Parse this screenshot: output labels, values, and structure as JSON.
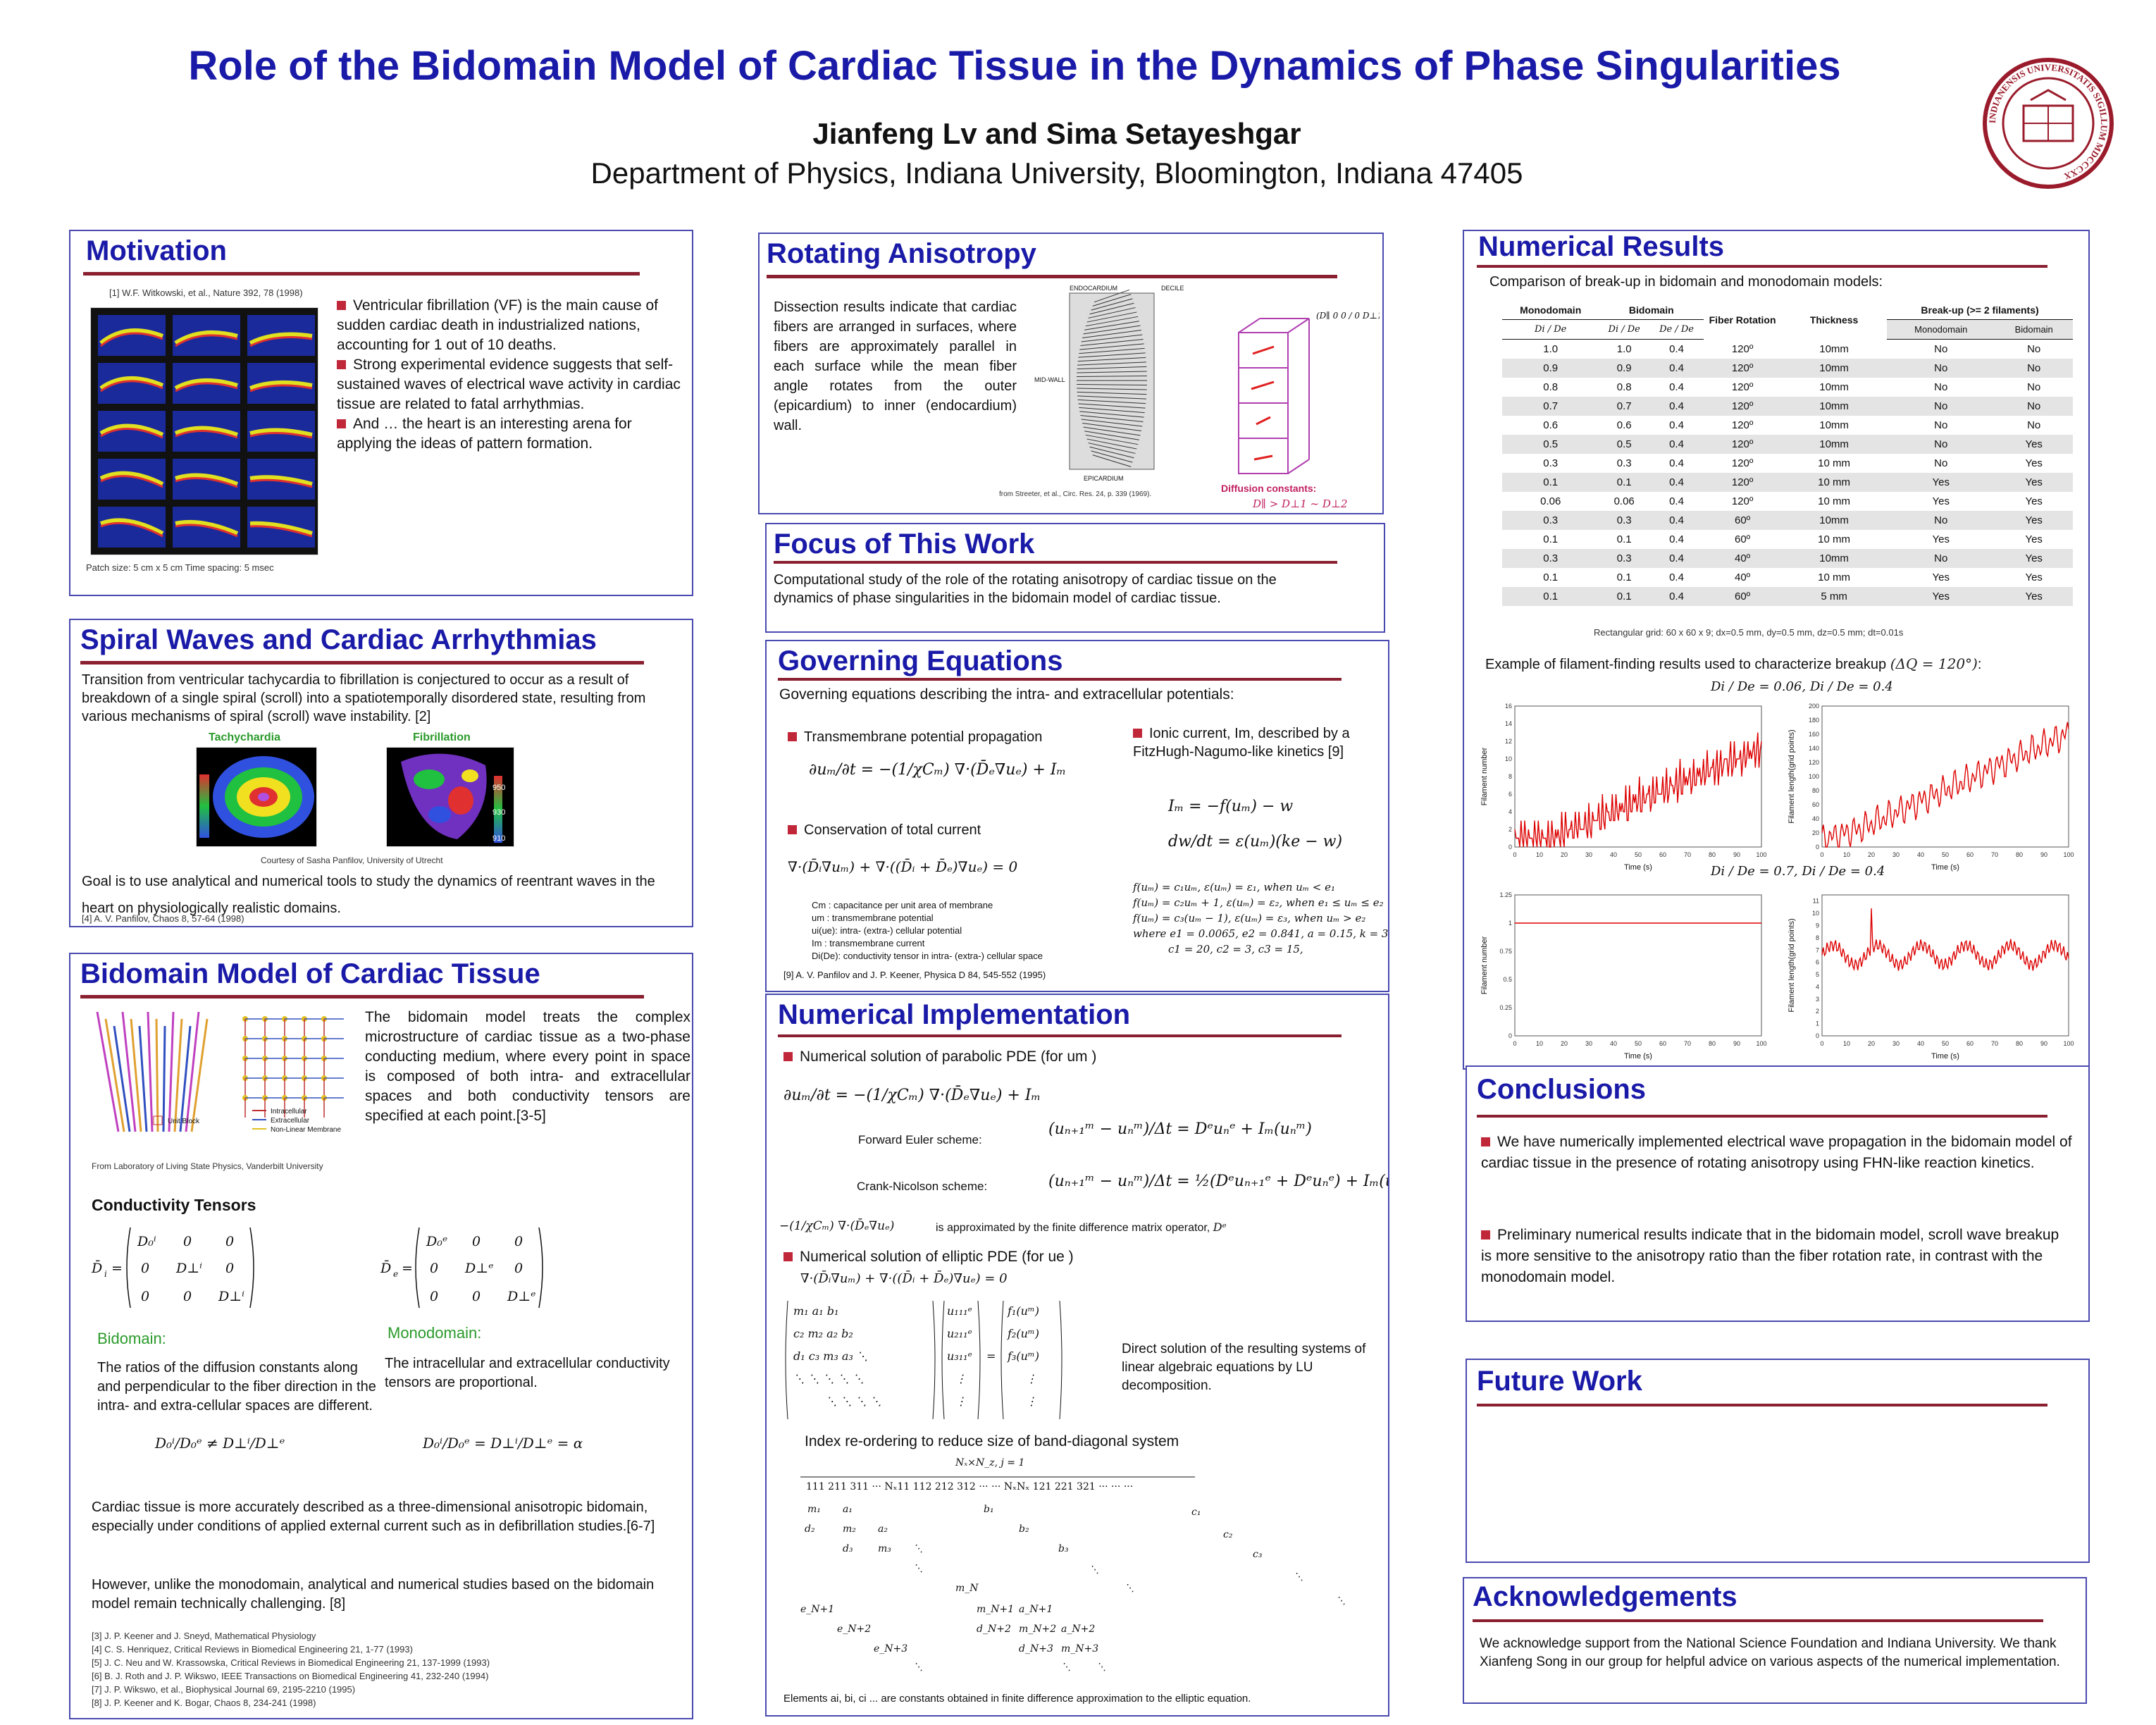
{
  "header": {
    "title": "Role of the Bidomain Model of Cardiac Tissue in the Dynamics of Phase Singularities",
    "authors": "Jianfeng Lv and Sima Setayeshgar",
    "affiliation": "Department of Physics, Indiana University, Bloomington, Indiana 47405",
    "seal_text": "INDIANENSIS UNIVERSITATIS SIGILLUM MDCCCXX"
  },
  "colors": {
    "title_blue": "#1a1aa8",
    "underline_red": "#8a1f2f",
    "bullet_red": "#c0283a",
    "plot_red": "#dd0000"
  },
  "motivation": {
    "title": "Motivation",
    "citation": "[1] W.F. Witkowski, et al., Nature 392, 78 (1998)",
    "bullets": [
      "Ventricular fibrillation (VF) is the main cause of sudden cardiac death in industrialized nations, accounting for 1 out of 10 deaths.",
      "Strong experimental evidence suggests that self-sustained waves of electrical wave activity in cardiac tissue are related to fatal arrhythmias.",
      "And … the heart is an interesting arena for applying the ideas of pattern formation."
    ],
    "caption": "Patch size: 5 cm x 5 cm Time spacing: 5 msec"
  },
  "spiral": {
    "title": "Spiral Waves and Cardiac Arrhythmias",
    "text": "Transition from ventricular tachycardia to fibrillation is conjectured to occur as a result of breakdown of a single spiral (scroll) into a spatiotemporally disordered state, resulting from various mechanisms of spiral (scroll) wave instability. [2]",
    "label_tachy": "Tachychardia",
    "label_fib": "Fibrillation",
    "credit": "Courtesy of Sasha Panfilov, University of Utrecht",
    "goal": "Goal is to use analytical and numerical tools to study the dynamics of reentrant waves in the heart on physiologically realistic domains.",
    "ref": "[4] A. V. Panfilov, Chaos 8, 57-64 (1998)",
    "scale_labels": [
      "950",
      "930",
      "910"
    ]
  },
  "bidomain": {
    "title": "Bidomain Model of Cardiac Tissue",
    "text": "The bidomain model treats the complex microstructure of cardiac tissue as a two-phase conducting medium, where every point in space is composed of both intra- and extracellular spaces and both conductivity tensors are specified at each point.[3-5]",
    "fig_credit": "From Laboratory of Living State Physics, Vanderbilt University",
    "legend": [
      "Unit Block",
      "Intracellular",
      "Extracellular",
      "Non-Linear Membrane"
    ],
    "cond_title": "Conductivity  Tensors",
    "bid_head": "Bidomain:",
    "bid_text": "The ratios of the diffusion constants along and perpendicular to the fiber direction in the intra- and extra-cellular spaces are different.",
    "mono_head": "Monodomain:",
    "mono_text": "The intracellular and extracellular conductivity tensors are proportional.",
    "para1": "Cardiac tissue is more accurately described as a three-dimensional anisotropic bidomain, especially under conditions of applied external current such as in defibrillation studies.[6-7]",
    "para2": "However, unlike the monodomain, analytical and numerical studies based on the bidomain model remain technically challenging. [8]",
    "refs": [
      "[3] J. P. Keener and J. Sneyd, Mathematical Physiology",
      "[4] C. S. Henriquez, Critical Reviews in Biomedical Engineering 21, 1-77 (1993)",
      "[5] J. C. Neu and W. Krassowska, Critical Reviews in Biomedical Engineering 21, 137-1999 (1993)",
      "[6] B. J. Roth and J. P. Wikswo, IEEE Transactions on Biomedical Engineering 41, 232-240 (1994)",
      "[7] J. P. Wikswo, et al., Biophysical Journal 69, 2195-2210 (1995)",
      "[8] J. P. Keener and K. Bogar, Chaos 8, 234-241 (1998)"
    ]
  },
  "rotating": {
    "title": "Rotating Anisotropy",
    "text": "Dissection results indicate that cardiac fibers are arranged in surfaces, where fibers are approximately parallel in each surface while the mean fiber angle rotates from the outer (epicardium) to inner (endocardium) wall.",
    "fig_labels": [
      "ENDOCARDIUM",
      "MID-WALL",
      "EPICARDIUM",
      "DECILE"
    ],
    "fig_source": "from Streeter, et al., Circ. Res. 24, p. 339 (1969).",
    "diffusion_label": "Diffusion constants:"
  },
  "focus": {
    "title": "Focus of This Work",
    "text": "Computational study of the role of the rotating anisotropy of cardiac tissue on the dynamics of phase singularities in the bidomain model of cardiac tissue."
  },
  "governing": {
    "title": "Governing Equations",
    "intro": "Governing equations describing the intra- and extracellular potentials:",
    "b1": "Transmembrane potential propagation",
    "b2": "Conservation of total current",
    "b3": "Ionic current, Im, described by a FitzHugh-Nagumo-like kinetics [9]",
    "defs": [
      "Cm : capacitance per unit area of membrane",
      "um : transmembrane potential",
      "ui(ue): intra- (extra-) cellular potential",
      "Im : transmembrane current",
      "Di(De): conductivity tensor in intra- (extra-) cellular space"
    ],
    "ref": "[9] A. V. Panfilov and J. P. Keener, Physica D 84, 545-552 (1995)",
    "params": "where e1 = 0.0065, e2 = 0.841, a = 0.15, k = 3",
    "params2": "c1 = 20, c2 = 3, c3 = 15,"
  },
  "numimpl": {
    "title": "Numerical Implementation",
    "b1": "Numerical solution of parabolic PDE (for um )",
    "fe": "Forward Euler scheme:",
    "cn": "Crank-Nicolson scheme:",
    "approx": "is approximated by the finite difference matrix operator,",
    "b2": "Numerical solution of elliptic PDE (for ue )",
    "direct": "Direct  solution of  the resulting systems of linear algebraic equations  by  LU decomposition.",
    "reorder": "Index re-ordering to reduce size of band-diagonal system",
    "note": "Elements ai, bi, ci ... are constants obtained in finite difference approximation to the elliptic equation."
  },
  "results": {
    "title": "Numerical Results",
    "intro": "Comparison of break-up in bidomain and monodomain models:",
    "headers": [
      "Monodomain",
      "Bidomain",
      "Fiber Rotation",
      "Thickness",
      "Break-up (>= 2 filaments)",
      "Monodomain",
      "Bidomain"
    ],
    "subheaders": [
      "Di / De",
      "Di / De",
      "De / De"
    ],
    "rows": [
      [
        "1.0",
        "1.0",
        "0.4",
        "120º",
        "10mm",
        "No",
        "No"
      ],
      [
        "0.9",
        "0.9",
        "0.4",
        "120º",
        "10mm",
        "No",
        "No"
      ],
      [
        "0.8",
        "0.8",
        "0.4",
        "120º",
        "10mm",
        "No",
        "No"
      ],
      [
        "0.7",
        "0.7",
        "0.4",
        "120º",
        "10mm",
        "No",
        "No"
      ],
      [
        "0.6",
        "0.6",
        "0.4",
        "120º",
        "10mm",
        "No",
        "No"
      ],
      [
        "0.5",
        "0.5",
        "0.4",
        "120º",
        "10mm",
        "No",
        "Yes"
      ],
      [
        "0.3",
        "0.3",
        "0.4",
        "120º",
        "10 mm",
        "No",
        "Yes"
      ],
      [
        "0.1",
        "0.1",
        "0.4",
        "120º",
        "10 mm",
        "Yes",
        "Yes"
      ],
      [
        "0.06",
        "0.06",
        "0.4",
        "120º",
        "10 mm",
        "Yes",
        "Yes"
      ],
      [
        "0.3",
        "0.3",
        "0.4",
        "60º",
        "10mm",
        "No",
        "Yes"
      ],
      [
        "0.1",
        "0.1",
        "0.4",
        "60º",
        "10 mm",
        "Yes",
        "Yes"
      ],
      [
        "0.3",
        "0.3",
        "0.4",
        "40º",
        "10mm",
        "No",
        "Yes"
      ],
      [
        "0.1",
        "0.1",
        "0.4",
        "40º",
        "10 mm",
        "Yes",
        "Yes"
      ],
      [
        "0.1",
        "0.1",
        "0.4",
        "60º",
        "5 mm",
        "Yes",
        "Yes"
      ]
    ],
    "grid": "Rectangular grid:  60 x 60 x 9;  dx=0.5 mm, dy=0.5 mm, dz=0.5 mm; dt=0.01s",
    "example": "Example of filament-finding results used to characterize breakup",
    "case1": "Di / De = 0.06,  Di / De = 0.4",
    "case2": "Di / De = 0.7,  Di / De = 0.4",
    "xlabel": "Time (s)",
    "ylabel_num": "Filament number",
    "ylabel_len": "Filament length(grid points)"
  },
  "conclusions": {
    "title": "Conclusions",
    "p1": "We have numerically implemented electrical wave propagation in the bidomain model of cardiac tissue in the presence of rotating anisotropy using FHN-like reaction kinetics.",
    "p2": "Preliminary numerical results indicate that in the bidomain model, scroll wave breakup is more sensitive to the anisotropy ratio than the fiber rotation rate, in contrast with the monodomain model."
  },
  "future": {
    "title": "Future Work"
  },
  "ack": {
    "title": "Acknowledgements",
    "text": "We acknowledge support from the National Science Foundation and Indiana University.  We thank Xianfeng Song in our group for helpful advice on various aspects of the numerical implementation."
  }
}
